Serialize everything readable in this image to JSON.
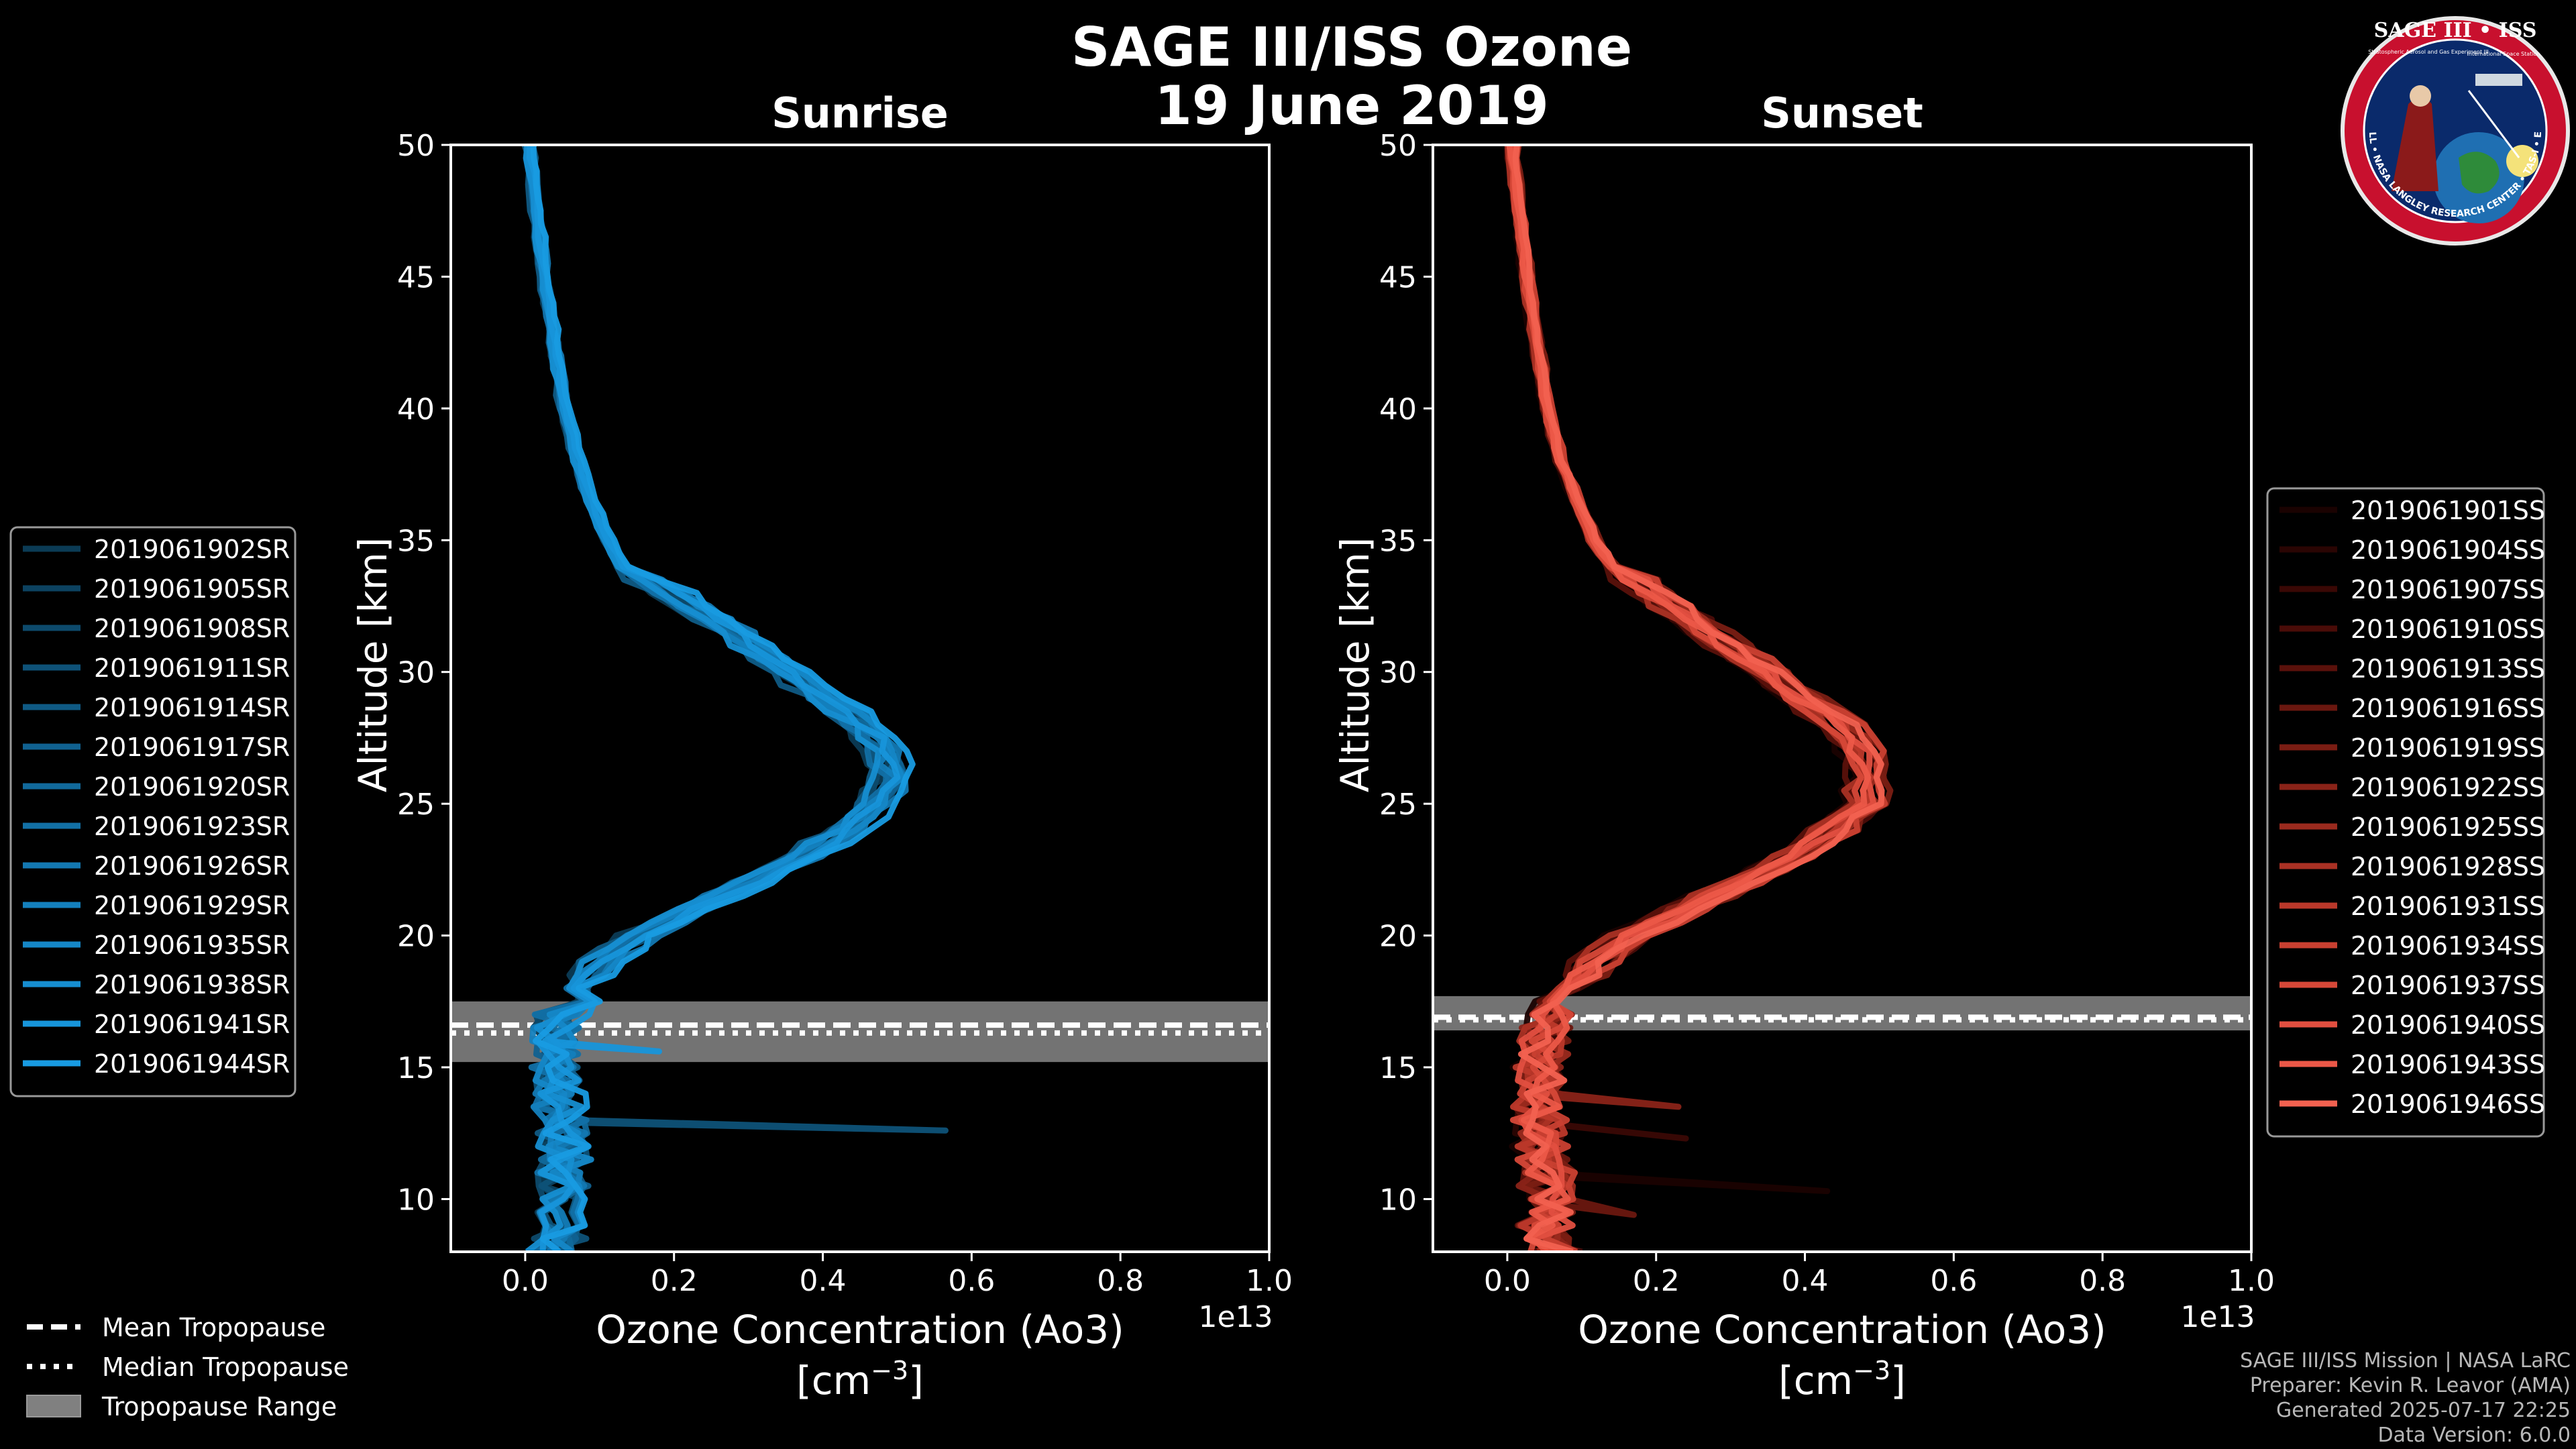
{
  "title_line1": "SAGE III/ISS Ozone",
  "title_line2": "19 June 2019",
  "logo": {
    "text_top": "SAGE III • ISS",
    "text_ring": "BALL • NASA LANGLEY RESEARCH CENTER • TAS-I • ESA",
    "text_inner_left": "Stratospheric Aerosol and Gas Experiment III",
    "text_inner_right": "International Space Station"
  },
  "credits": [
    "SAGE III/ISS Mission | NASA LaRC",
    "Preparer: Kevin R. Leavor (AMA)",
    "Generated 2025-07-17 22:25",
    "Data Version: 6.0.0"
  ],
  "tropopause_legend": [
    {
      "label": "Mean Tropopause",
      "style": "dashed"
    },
    {
      "label": "Median Tropopause",
      "style": "dotted"
    },
    {
      "label": "Tropopause Range",
      "style": "patch"
    }
  ],
  "chart_data": [
    {
      "type": "line",
      "title": "Sunrise",
      "xlabel": "Ozone Concentration (Ao3)",
      "xlabel_units_prefix": "[cm",
      "xlabel_units_exp": "−3",
      "xlabel_units_suffix": "]",
      "ylabel": "Altitude [km]",
      "x_offset_label": "1e13",
      "xlim": [
        -0.1,
        1.0
      ],
      "ylim": [
        8,
        50
      ],
      "xticks": [
        0.0,
        0.2,
        0.4,
        0.6,
        0.8,
        1.0
      ],
      "xtick_labels": [
        "0.0",
        "0.2",
        "0.4",
        "0.6",
        "0.8",
        "1.0"
      ],
      "yticks": [
        10,
        15,
        20,
        25,
        30,
        35,
        40,
        45,
        50
      ],
      "ytick_labels": [
        "10",
        "15",
        "20",
        "25",
        "30",
        "35",
        "40",
        "45",
        "50"
      ],
      "tropopause": {
        "mean": 16.6,
        "median": 16.3,
        "range": [
          15.2,
          17.5
        ]
      },
      "base_profile": {
        "altitude": [
          8,
          9,
          10,
          11,
          12,
          13,
          14,
          15,
          16,
          17,
          18,
          19,
          20,
          21,
          22,
          23,
          24,
          25,
          26,
          27,
          28,
          29,
          30,
          31,
          32,
          33,
          34,
          35,
          36,
          37,
          38,
          40,
          42,
          44,
          46,
          48,
          50
        ],
        "value": [
          0.04,
          0.05,
          0.05,
          0.05,
          0.05,
          0.05,
          0.04,
          0.04,
          0.04,
          0.05,
          0.07,
          0.1,
          0.15,
          0.22,
          0.3,
          0.37,
          0.43,
          0.47,
          0.49,
          0.48,
          0.45,
          0.4,
          0.35,
          0.3,
          0.25,
          0.19,
          0.13,
          0.11,
          0.095,
          0.08,
          0.07,
          0.052,
          0.04,
          0.03,
          0.02,
          0.012,
          0.005
        ]
      },
      "legend_position": "left",
      "series_colors": [
        "#0b3b55",
        "#0c4260",
        "#0d4a6c",
        "#0e5278",
        "#0f5a84",
        "#106190",
        "#11699b",
        "#1270a6",
        "#1378b2",
        "#1480bd",
        "#1587c7",
        "#168ed1",
        "#1795da",
        "#189be2"
      ],
      "series": [
        {
          "name": "2019061902SR",
          "offset": -0.01,
          "anomaly": null
        },
        {
          "name": "2019061905SR",
          "offset": 0.005,
          "anomaly": null
        },
        {
          "name": "2019061908SR",
          "offset": -0.004,
          "anomaly": null
        },
        {
          "name": "2019061911SR",
          "offset": 0.012,
          "anomaly": {
            "x": 0.565,
            "y": 12.6
          }
        },
        {
          "name": "2019061914SR",
          "offset": -0.012,
          "anomaly": null
        },
        {
          "name": "2019061917SR",
          "offset": 0.008,
          "anomaly": null
        },
        {
          "name": "2019061920SR",
          "offset": 0.0,
          "anomaly": null
        },
        {
          "name": "2019061923SR",
          "offset": -0.006,
          "anomaly": null
        },
        {
          "name": "2019061926SR",
          "offset": 0.014,
          "anomaly": null
        },
        {
          "name": "2019061929SR",
          "offset": -0.002,
          "anomaly": null
        },
        {
          "name": "2019061935SR",
          "offset": 0.01,
          "anomaly": null
        },
        {
          "name": "2019061938SR",
          "offset": -0.008,
          "anomaly": null
        },
        {
          "name": "2019061941SR",
          "offset": 0.004,
          "anomaly": {
            "x": 0.18,
            "y": 15.6
          }
        },
        {
          "name": "2019061944SR",
          "offset": 0.018,
          "anomaly": null
        }
      ]
    },
    {
      "type": "line",
      "title": "Sunset",
      "xlabel": "Ozone Concentration (Ao3)",
      "xlabel_units_prefix": "[cm",
      "xlabel_units_exp": "−3",
      "xlabel_units_suffix": "]",
      "ylabel": "Altitude [km]",
      "x_offset_label": "1e13",
      "xlim": [
        -0.1,
        1.0
      ],
      "ylim": [
        8,
        50
      ],
      "xticks": [
        0.0,
        0.2,
        0.4,
        0.6,
        0.8,
        1.0
      ],
      "xtick_labels": [
        "0.0",
        "0.2",
        "0.4",
        "0.6",
        "0.8",
        "1.0"
      ],
      "yticks": [
        10,
        15,
        20,
        25,
        30,
        35,
        40,
        45,
        50
      ],
      "ytick_labels": [
        "10",
        "15",
        "20",
        "25",
        "30",
        "35",
        "40",
        "45",
        "50"
      ],
      "tropopause": {
        "mean": 16.9,
        "median": 16.8,
        "range": [
          16.4,
          17.7
        ]
      },
      "base_profile": {
        "altitude": [
          8,
          9,
          10,
          11,
          12,
          13,
          14,
          15,
          16,
          17,
          18,
          19,
          20,
          21,
          22,
          23,
          24,
          25,
          26,
          27,
          28,
          29,
          30,
          31,
          32,
          33,
          34,
          35,
          36,
          37,
          38,
          40,
          42,
          44,
          46,
          48,
          50
        ],
        "value": [
          0.06,
          0.05,
          0.05,
          0.05,
          0.04,
          0.04,
          0.04,
          0.04,
          0.05,
          0.06,
          0.08,
          0.11,
          0.16,
          0.23,
          0.31,
          0.38,
          0.43,
          0.47,
          0.48,
          0.47,
          0.44,
          0.39,
          0.34,
          0.29,
          0.24,
          0.19,
          0.14,
          0.115,
          0.1,
          0.085,
          0.07,
          0.052,
          0.04,
          0.03,
          0.02,
          0.012,
          0.005
        ]
      },
      "legend_position": "right",
      "series_colors": [
        "#1a0201",
        "#2a0503",
        "#3a0805",
        "#4a0c08",
        "#5a110b",
        "#6a170f",
        "#7a1d13",
        "#8a2318",
        "#9a2a1e",
        "#aa3124",
        "#ba382a",
        "#c94031",
        "#d64838",
        "#e24f40",
        "#ec5848",
        "#f26150"
      ],
      "series": [
        {
          "name": "2019061901SS",
          "offset": -0.012,
          "anomaly": {
            "x": 0.43,
            "y": 10.3
          }
        },
        {
          "name": "2019061904SS",
          "offset": 0.01,
          "anomaly": null
        },
        {
          "name": "2019061907SS",
          "offset": -0.005,
          "anomaly": {
            "x": 0.24,
            "y": 12.3
          }
        },
        {
          "name": "2019061910SS",
          "offset": 0.016,
          "anomaly": null
        },
        {
          "name": "2019061913SS",
          "offset": -0.01,
          "anomaly": null
        },
        {
          "name": "2019061916SS",
          "offset": 0.004,
          "anomaly": {
            "x": 0.17,
            "y": 9.4
          }
        },
        {
          "name": "2019061919SS",
          "offset": 0.02,
          "anomaly": null
        },
        {
          "name": "2019061922SS",
          "offset": -0.002,
          "anomaly": {
            "x": 0.23,
            "y": 13.5
          }
        },
        {
          "name": "2019061925SS",
          "offset": 0.012,
          "anomaly": null
        },
        {
          "name": "2019061928SS",
          "offset": -0.008,
          "anomaly": null
        },
        {
          "name": "2019061931SS",
          "offset": 0.006,
          "anomaly": null
        },
        {
          "name": "2019061934SS",
          "offset": 0.018,
          "anomaly": null
        },
        {
          "name": "2019061937SS",
          "offset": -0.004,
          "anomaly": null
        },
        {
          "name": "2019061940SS",
          "offset": 0.008,
          "anomaly": null
        },
        {
          "name": "2019061943SS",
          "offset": 0.0,
          "anomaly": null
        },
        {
          "name": "2019061946SS",
          "offset": 0.014,
          "anomaly": null
        }
      ]
    }
  ]
}
